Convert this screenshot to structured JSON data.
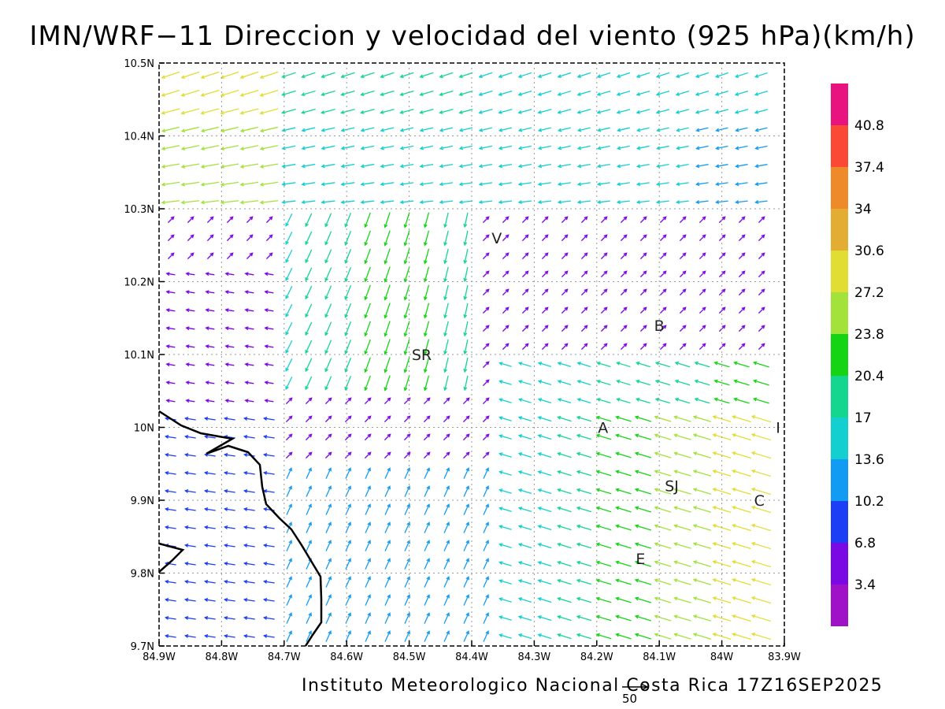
{
  "title": "IMN/WRF−11 Direccion y velocidad del viento (925 hPa)(km/h)",
  "footer": "Instituto Meteorologico Nacional Costa Rica 17Z16SEP2025",
  "reference_vector_label": "50",
  "map": {
    "lon_ticks": [
      "84.9W",
      "84.8W",
      "84.7W",
      "84.6W",
      "84.5W",
      "84.4W",
      "84.3W",
      "84.2W",
      "84.1W",
      "84W",
      "83.9W"
    ],
    "lat_ticks": [
      "10.5N",
      "10.4N",
      "10.3N",
      "10.2N",
      "10.1N",
      "10N",
      "9.9N",
      "9.8N",
      "9.7N"
    ],
    "places": [
      {
        "name": "V",
        "lon": -84.36,
        "lat": 10.26
      },
      {
        "name": "B",
        "lon": -84.1,
        "lat": 10.14
      },
      {
        "name": "SR",
        "lon": -84.48,
        "lat": 10.1
      },
      {
        "name": "A",
        "lon": -84.19,
        "lat": 10.0
      },
      {
        "name": "I",
        "lon": -83.91,
        "lat": 10.0
      },
      {
        "name": "SJ",
        "lon": -84.08,
        "lat": 9.92
      },
      {
        "name": "C",
        "lon": -83.94,
        "lat": 9.9
      },
      {
        "name": "E",
        "lon": -84.13,
        "lat": 9.82
      }
    ]
  },
  "colorbar": {
    "labels": [
      "40.8",
      "37.4",
      "34",
      "30.6",
      "27.2",
      "23.8",
      "20.4",
      "17",
      "13.6",
      "10.2",
      "6.8",
      "3.4"
    ],
    "colors": [
      "#e8137f",
      "#fa4a35",
      "#ef8a2b",
      "#e3ac32",
      "#e2dd32",
      "#a3e23a",
      "#14d414",
      "#14d68f",
      "#14cfcf",
      "#129bf2",
      "#1c3ef5",
      "#7b09e3",
      "#a012c8"
    ]
  }
}
